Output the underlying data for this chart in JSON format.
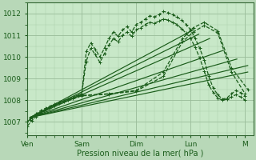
{
  "bg_color": "#b8d8b8",
  "plot_bg_color": "#c8e8c8",
  "grid_color_major": "#99bb99",
  "grid_color_minor": "#aaccaa",
  "line_color": "#1a5c1a",
  "xlim": [
    0,
    4.15
  ],
  "ylim": [
    1006.4,
    1012.5
  ],
  "yticks": [
    1007,
    1008,
    1009,
    1010,
    1011,
    1012
  ],
  "xtick_positions": [
    0.0,
    1.0,
    2.0,
    3.0,
    4.0
  ],
  "xtick_labels": [
    "Ven",
    "Sam",
    "Dim",
    "Lun",
    "M"
  ],
  "xlabel": "Pression niveau de la mer( hPa )",
  "jagged1_x": [
    0.0,
    0.083,
    0.167,
    0.25,
    0.333,
    0.417,
    0.5,
    0.583,
    0.667,
    0.75,
    0.833,
    0.917,
    1.0,
    1.083,
    1.167,
    1.25,
    1.333,
    1.417,
    1.5,
    1.583,
    1.667,
    1.75,
    1.833,
    1.917,
    2.0,
    2.083,
    2.167,
    2.25,
    2.333,
    2.417,
    2.5,
    2.583,
    2.667,
    2.75,
    2.833,
    2.917,
    3.0,
    3.083,
    3.167,
    3.25,
    3.333,
    3.417,
    3.5,
    3.583,
    3.667,
    3.75,
    3.833,
    3.917,
    4.0
  ],
  "jagged1_y": [
    1006.8,
    1007.05,
    1007.25,
    1007.4,
    1007.55,
    1007.65,
    1007.75,
    1007.85,
    1007.92,
    1008.0,
    1008.1,
    1008.18,
    1008.28,
    1010.25,
    1010.65,
    1010.35,
    1010.0,
    1010.4,
    1010.85,
    1011.15,
    1010.95,
    1011.25,
    1011.4,
    1011.15,
    1011.5,
    1011.6,
    1011.75,
    1011.9,
    1011.85,
    1011.95,
    1012.1,
    1012.05,
    1011.95,
    1011.85,
    1011.7,
    1011.5,
    1011.25,
    1010.85,
    1010.4,
    1009.85,
    1009.1,
    1008.55,
    1008.25,
    1008.05,
    1008.1,
    1008.3,
    1008.45,
    1008.35,
    1008.2
  ],
  "jagged2_x": [
    0.0,
    0.083,
    0.167,
    0.25,
    0.333,
    0.417,
    0.5,
    0.583,
    0.667,
    0.75,
    0.833,
    0.917,
    1.0,
    1.083,
    1.167,
    1.25,
    1.333,
    1.417,
    1.5,
    1.583,
    1.667,
    1.75,
    1.833,
    1.917,
    2.0,
    2.083,
    2.167,
    2.25,
    2.333,
    2.417,
    2.5,
    2.583,
    2.667,
    2.75,
    2.833,
    2.917,
    3.0,
    3.083,
    3.167,
    3.25,
    3.333,
    3.417,
    3.5,
    3.583,
    3.667,
    3.75,
    3.83,
    3.92,
    4.0
  ],
  "jagged2_y": [
    1007.0,
    1007.2,
    1007.38,
    1007.52,
    1007.62,
    1007.72,
    1007.82,
    1007.9,
    1007.98,
    1008.05,
    1008.13,
    1008.22,
    1008.3,
    1009.8,
    1010.4,
    1010.1,
    1009.75,
    1010.15,
    1010.55,
    1010.85,
    1010.7,
    1011.0,
    1011.15,
    1010.95,
    1011.25,
    1011.35,
    1011.5,
    1011.6,
    1011.55,
    1011.65,
    1011.75,
    1011.7,
    1011.6,
    1011.5,
    1011.3,
    1011.1,
    1010.85,
    1010.45,
    1009.95,
    1009.35,
    1008.7,
    1008.35,
    1008.1,
    1008.0,
    1008.05,
    1008.15,
    1008.25,
    1008.15,
    1008.0
  ],
  "fan_lines": [
    {
      "x": [
        0.05,
        3.05
      ],
      "y": [
        1007.2,
        1011.25
      ]
    },
    {
      "x": [
        0.05,
        3.15
      ],
      "y": [
        1007.2,
        1011.05
      ]
    },
    {
      "x": [
        0.05,
        3.35
      ],
      "y": [
        1007.2,
        1010.85
      ]
    },
    {
      "x": [
        0.05,
        3.6
      ],
      "y": [
        1007.2,
        1010.3
      ]
    },
    {
      "x": [
        0.05,
        3.85
      ],
      "y": [
        1007.2,
        1009.9
      ]
    },
    {
      "x": [
        0.05,
        4.05
      ],
      "y": [
        1007.2,
        1009.6
      ]
    },
    {
      "x": [
        0.05,
        4.05
      ],
      "y": [
        1007.2,
        1009.3
      ]
    }
  ],
  "curved_lines": [
    {
      "x": [
        0.05,
        0.5,
        1.0,
        1.5,
        2.0,
        2.5,
        2.85,
        3.05,
        3.25,
        3.5,
        3.75,
        4.0
      ],
      "y": [
        1007.1,
        1007.75,
        1008.2,
        1008.28,
        1008.42,
        1009.1,
        1010.7,
        1011.15,
        1011.45,
        1011.1,
        1009.3,
        1008.3
      ]
    },
    {
      "x": [
        0.05,
        0.5,
        1.0,
        1.5,
        2.0,
        2.5,
        2.85,
        3.05,
        3.25,
        3.5,
        3.75,
        4.05
      ],
      "y": [
        1007.15,
        1007.8,
        1008.22,
        1008.3,
        1008.45,
        1009.3,
        1010.85,
        1011.35,
        1011.6,
        1011.2,
        1009.5,
        1008.5
      ]
    }
  ]
}
